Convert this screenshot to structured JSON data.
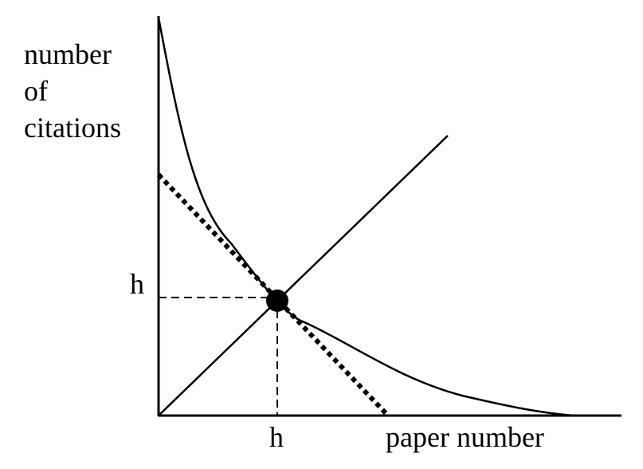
{
  "diagram": {
    "y_axis_label_lines": [
      "number",
      "of",
      "citations"
    ],
    "x_axis_label": "paper number",
    "h_label_y": "h",
    "h_label_x": "h"
  }
}
